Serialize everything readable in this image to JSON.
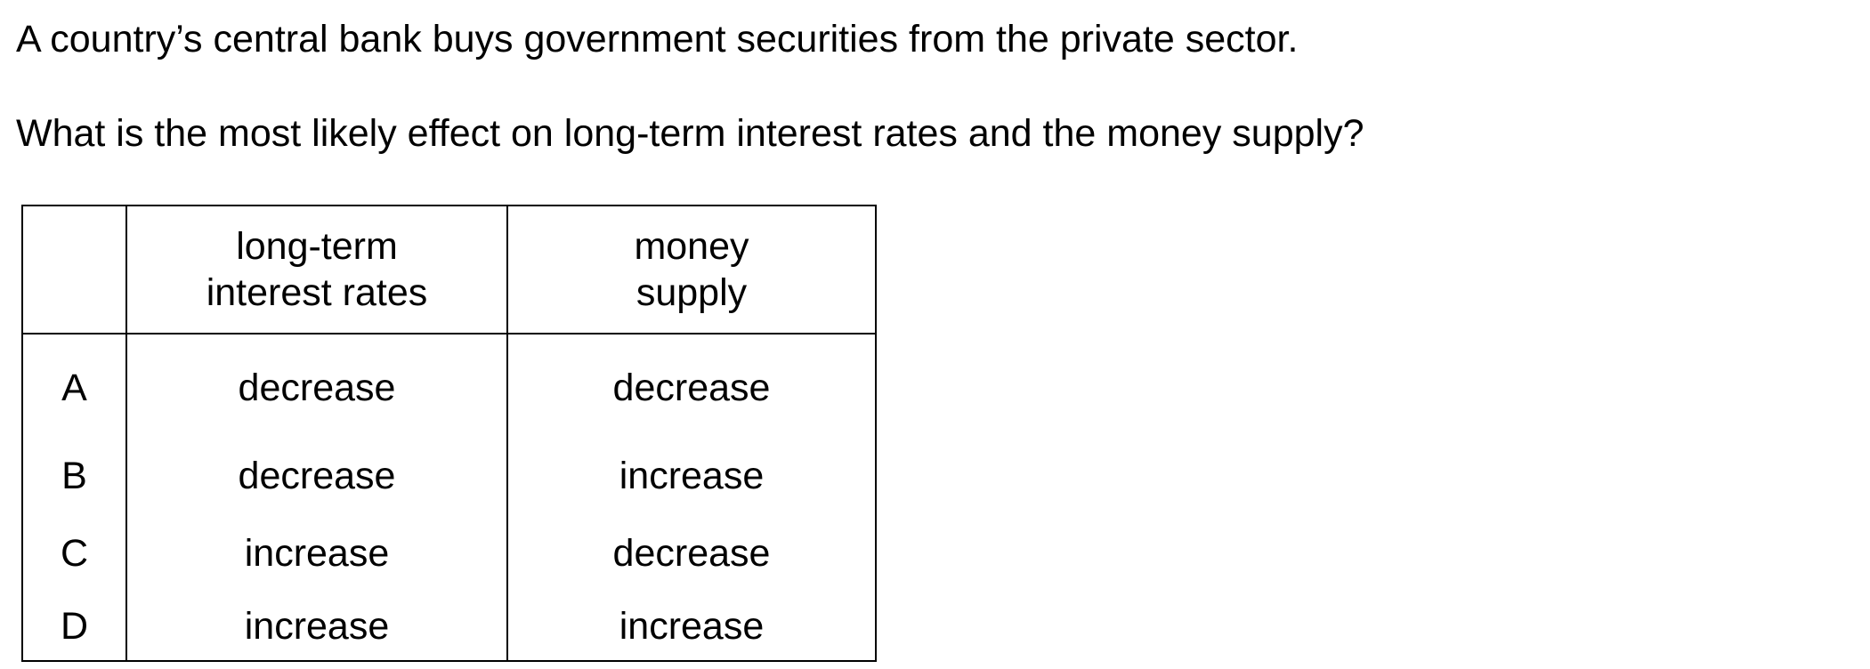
{
  "question": {
    "stem_line_1": "A country’s central bank buys government securities from the private sector.",
    "stem_line_2": "What is the most likely effect on long-term interest rates and the money supply?"
  },
  "table": {
    "header_blank": "",
    "col_rates_line1": "long-term",
    "col_rates_line2": "interest rates",
    "col_money_line1": "money",
    "col_money_line2": "supply",
    "rows": [
      {
        "letter": "A",
        "rates": "decrease",
        "money": "decrease"
      },
      {
        "letter": "B",
        "rates": "decrease",
        "money": "increase"
      },
      {
        "letter": "C",
        "rates": "increase",
        "money": "decrease"
      },
      {
        "letter": "D",
        "rates": "increase",
        "money": "increase"
      }
    ]
  }
}
